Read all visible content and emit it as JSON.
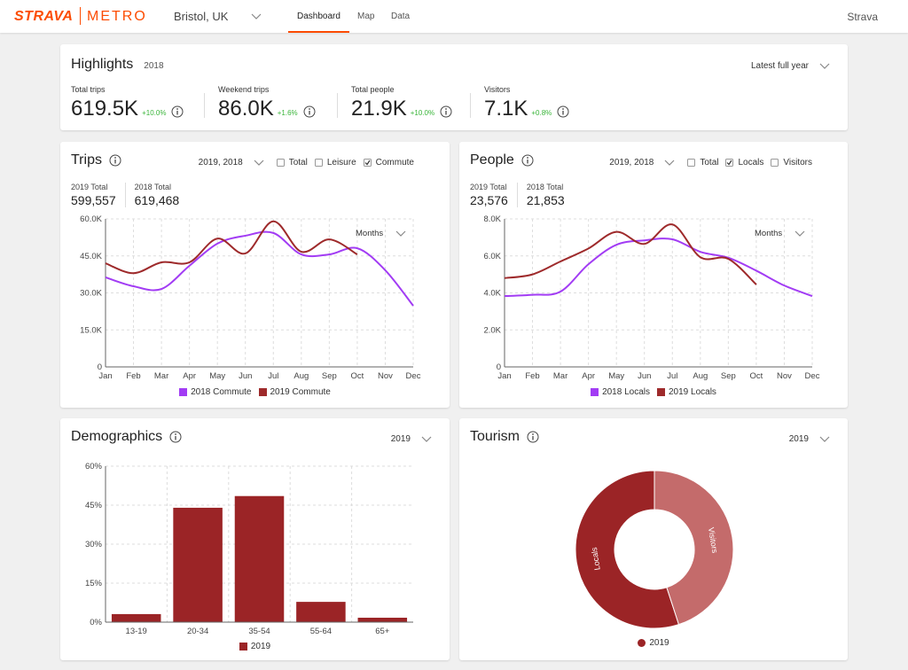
{
  "nav": {
    "brand": "STRAVA",
    "product": "METRO",
    "location": "Bristol, UK",
    "tabs": [
      "Dashboard",
      "Map",
      "Data"
    ],
    "active_tab": 0,
    "user": "Strava"
  },
  "highlights": {
    "title": "Highlights",
    "year": "2018",
    "period": "Latest full year",
    "stats": [
      {
        "label": "Total trips",
        "value": "619.5K",
        "change": "+10.0%"
      },
      {
        "label": "Weekend trips",
        "value": "86.0K",
        "change": "+1.6%"
      },
      {
        "label": "Total people",
        "value": "21.9K",
        "change": "+10.0%"
      },
      {
        "label": "Visitors",
        "value": "7.1K",
        "change": "+0.8%"
      }
    ]
  },
  "chart_data": [
    {
      "type": "line",
      "title": "Trips",
      "selector": "2019, 2018",
      "filters": [
        {
          "label": "Total",
          "checked": false
        },
        {
          "label": "Leisure",
          "checked": false
        },
        {
          "label": "Commute",
          "checked": true
        }
      ],
      "totals": [
        {
          "label": "2019 Total",
          "value": "599,557"
        },
        {
          "label": "2018 Total",
          "value": "619,468"
        }
      ],
      "interval": "Months",
      "categories": [
        "Jan",
        "Feb",
        "Mar",
        "Apr",
        "May",
        "Jun",
        "Jul",
        "Aug",
        "Sep",
        "Oct",
        "Nov",
        "Dec"
      ],
      "series": [
        {
          "name": "2018 Commute",
          "color": "#a23cf4",
          "values": [
            36300,
            32700,
            31600,
            41000,
            50000,
            53200,
            54300,
            45600,
            45600,
            48100,
            39200,
            24800
          ]
        },
        {
          "name": "2019 Commute",
          "color": "#9e2a2b",
          "values": [
            42000,
            38000,
            42400,
            42400,
            52000,
            46000,
            59000,
            46700,
            51700,
            45600,
            null,
            null
          ]
        }
      ],
      "ylim": [
        0,
        60000
      ],
      "yticks": [
        0,
        {
          "value": 15000,
          "label": "15.0K"
        },
        {
          "value": 30000,
          "label": "30.0K"
        },
        {
          "value": 45000,
          "label": "45.0K"
        },
        {
          "value": 60000,
          "label": "60.0K"
        }
      ],
      "grid": true
    },
    {
      "type": "line",
      "title": "People",
      "selector": "2019, 2018",
      "filters": [
        {
          "label": "Total",
          "checked": false
        },
        {
          "label": "Locals",
          "checked": true
        },
        {
          "label": "Visitors",
          "checked": false
        }
      ],
      "totals": [
        {
          "label": "2019 Total",
          "value": "23,576"
        },
        {
          "label": "2018 Total",
          "value": "21,853"
        }
      ],
      "interval": "Months",
      "categories": [
        "Jan",
        "Feb",
        "Mar",
        "Apr",
        "May",
        "Jun",
        "Jul",
        "Aug",
        "Sep",
        "Oct",
        "Nov",
        "Dec"
      ],
      "series": [
        {
          "name": "2018 Locals",
          "color": "#a23cf4",
          "values": [
            3830,
            3900,
            4070,
            5550,
            6600,
            6840,
            6900,
            6220,
            5900,
            5200,
            4400,
            3830
          ]
        },
        {
          "name": "2019 Locals",
          "color": "#9e2a2b",
          "values": [
            4800,
            5000,
            5700,
            6400,
            7300,
            6650,
            7700,
            5930,
            5840,
            4450,
            null,
            null
          ]
        }
      ],
      "ylim": [
        0,
        8000
      ],
      "yticks": [
        0,
        {
          "value": 2000,
          "label": "2.0K"
        },
        {
          "value": 4000,
          "label": "4.0K"
        },
        {
          "value": 6000,
          "label": "6.0K"
        },
        {
          "value": 8000,
          "label": "8.0K"
        }
      ],
      "grid": true
    },
    {
      "type": "bar",
      "title": "Demographics",
      "selector": "2019",
      "categories": [
        "13-19",
        "20-34",
        "35-54",
        "55-64",
        "65+"
      ],
      "series": [
        {
          "name": "2019",
          "color": "#9b2426",
          "values": [
            3.1,
            44,
            48.5,
            7.8,
            1.7
          ]
        }
      ],
      "ylim": [
        0,
        60
      ],
      "yticks": [
        {
          "value": 0,
          "label": "0%"
        },
        {
          "value": 15,
          "label": "15%"
        },
        {
          "value": 30,
          "label": "30%"
        },
        {
          "value": 45,
          "label": "45%"
        },
        {
          "value": 60,
          "label": "60%"
        }
      ],
      "grid": true
    },
    {
      "type": "pie",
      "title": "Tourism",
      "selector": "2019",
      "categories": [
        "Locals",
        "Visitors"
      ],
      "values": [
        55,
        45
      ],
      "colors": [
        "#9b2426",
        "#c46b6b"
      ],
      "legend_label": "2019",
      "legend_color": "#9b2426"
    }
  ]
}
